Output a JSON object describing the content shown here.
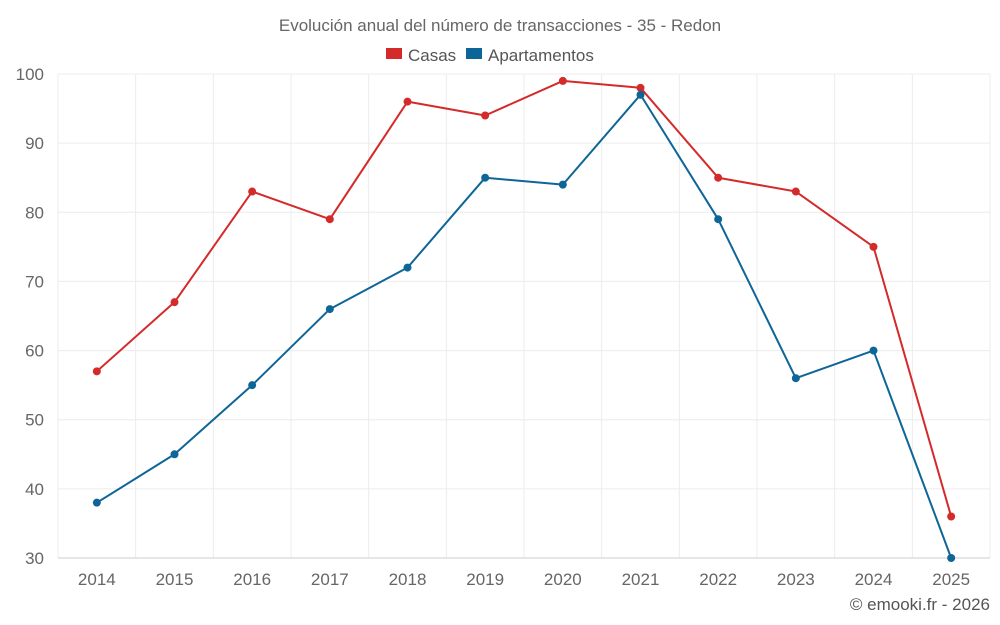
{
  "chart_data": {
    "type": "line",
    "title": "Evolución anual del número de transacciones - 35 - Redon",
    "xlabel": "",
    "ylabel": "",
    "categories": [
      "2014",
      "2015",
      "2016",
      "2017",
      "2018",
      "2019",
      "2020",
      "2021",
      "2022",
      "2023",
      "2024",
      "2025"
    ],
    "ylim": [
      30,
      100
    ],
    "yticks": [
      30,
      40,
      50,
      60,
      70,
      80,
      90,
      100
    ],
    "grid": true,
    "legend_position": "top-center",
    "series": [
      {
        "name": "Casas",
        "color": "#d42a2a",
        "values": [
          57,
          67,
          83,
          79,
          96,
          94,
          99,
          98,
          85,
          83,
          75,
          36
        ]
      },
      {
        "name": "Apartamentos",
        "color": "#0e6597",
        "values": [
          38,
          45,
          55,
          66,
          72,
          85,
          84,
          97,
          79,
          56,
          60,
          30
        ]
      }
    ]
  },
  "watermark": "© emooki.fr - 2026"
}
